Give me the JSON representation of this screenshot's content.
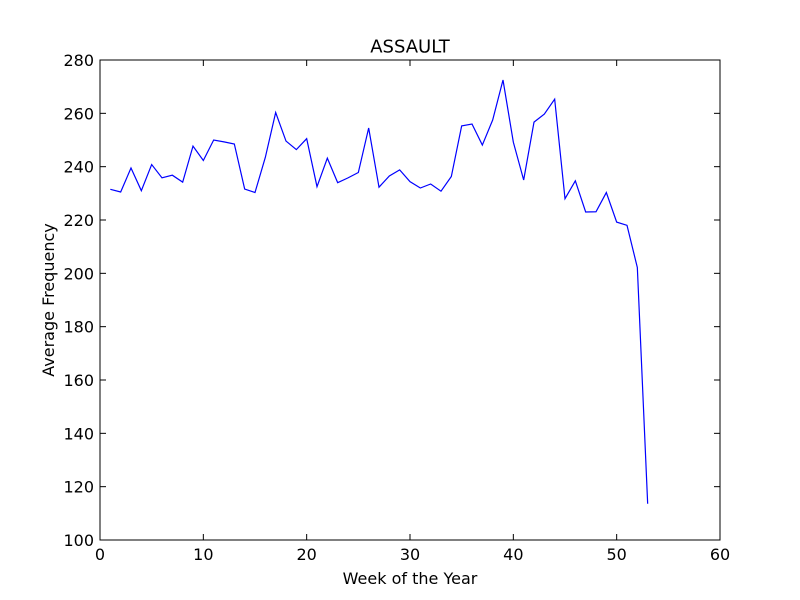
{
  "chart_data": {
    "type": "line",
    "title": "ASSAULT",
    "xlabel": "Week of the Year",
    "ylabel": "Average Frequency",
    "xlim": [
      0,
      60
    ],
    "ylim": [
      100,
      280
    ],
    "xticks": [
      0,
      10,
      20,
      30,
      40,
      50,
      60
    ],
    "yticks": [
      100,
      120,
      140,
      160,
      180,
      200,
      220,
      240,
      260,
      280
    ],
    "grid": false,
    "line_color": "#0000ff",
    "series": [
      {
        "x": [
          1,
          2,
          3,
          4,
          5,
          6,
          7,
          8,
          9,
          10,
          11,
          12,
          13,
          14,
          15,
          16,
          17,
          18,
          19,
          20,
          21,
          22,
          23,
          24,
          25,
          26,
          27,
          28,
          29,
          30,
          31,
          32,
          33,
          34,
          35,
          36,
          37,
          38,
          39,
          40,
          41,
          42,
          43,
          44,
          45,
          46,
          47,
          48,
          49,
          50,
          51,
          52,
          53
        ],
        "values": [
          231.5,
          230.5,
          239.5,
          231,
          240.8,
          235.8,
          236.8,
          234.2,
          247.7,
          242.3,
          250,
          249.3,
          248.5,
          231.6,
          230.3,
          243.5,
          260.3,
          249.6,
          246.4,
          250.5,
          232.5,
          243.2,
          234,
          235.8,
          237.8,
          254.5,
          232.3,
          236.5,
          238.8,
          234.4,
          232,
          233.5,
          230.8,
          236.3,
          255.3,
          256,
          248.1,
          257.5,
          272.5,
          249.2,
          235,
          256.7,
          259.7,
          265.3,
          228,
          234.7,
          223,
          223.1,
          230.3,
          219.2,
          218,
          202.2,
          113.6
        ]
      }
    ]
  }
}
